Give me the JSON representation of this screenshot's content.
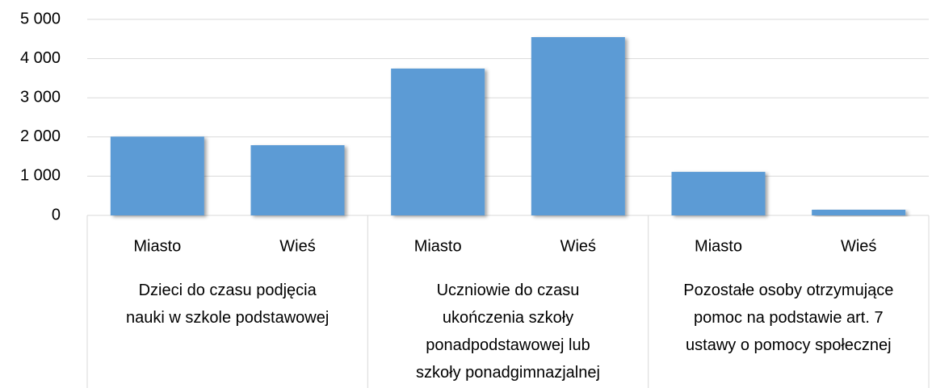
{
  "chart_data": {
    "type": "bar",
    "categories": [
      "Miasto",
      "Wieś",
      "Miasto",
      "Wieś",
      "Miasto",
      "Wieś"
    ],
    "group_labels": [
      "Dzieci do czasu podjęcia\nnauki w szkole podstawowej",
      "Uczniowie do czasu\nukończenia szkoły\nponadpodstawowej lub\nszkoły ponadgimnazjalnej",
      "Pozostałe osoby otrzymujące\npomoc na podstawie art. 7\nustawy o pomocy społecznej"
    ],
    "values": [
      2010,
      1790,
      3745,
      4547,
      1110,
      144
    ],
    "color": "#5b9bd5",
    "ylim": [
      0,
      5000
    ],
    "yticks": [
      0,
      {
        "value": 1000,
        "label": "1 000"
      },
      {
        "value": 2000,
        "label": "2 000"
      },
      {
        "value": 3000,
        "label": "3 000"
      },
      {
        "value": 4000,
        "label": "4 000"
      },
      {
        "value": 5000,
        "label": "5 000"
      }
    ],
    "grid": true
  }
}
